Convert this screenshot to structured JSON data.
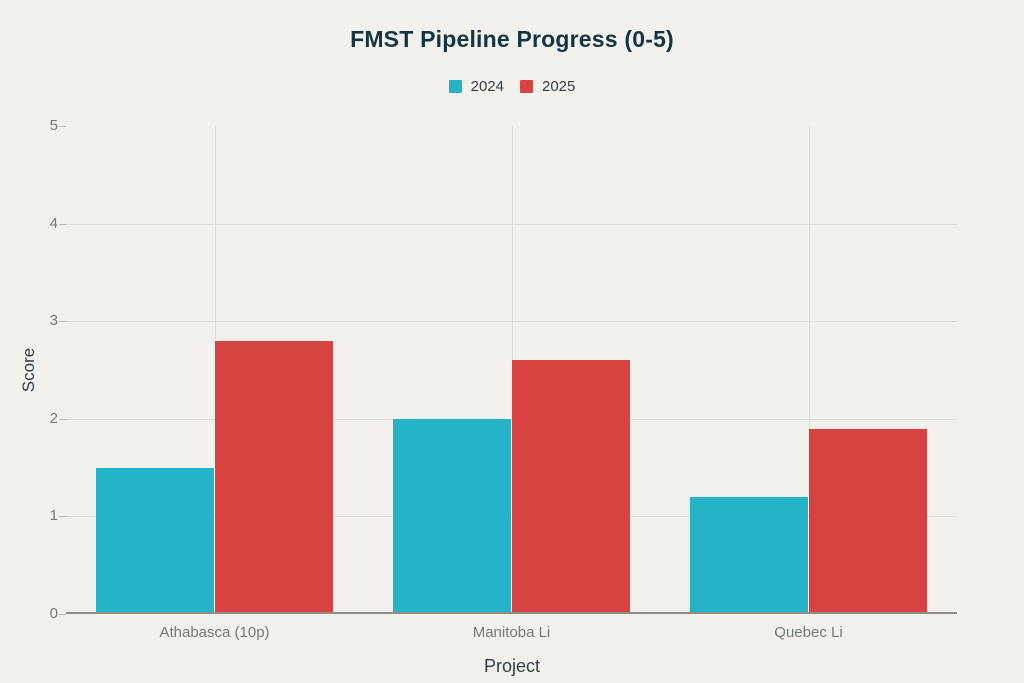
{
  "chart_data": {
    "type": "bar",
    "title": "FMST Pipeline Progress (0-5)",
    "xlabel": "Project",
    "ylabel": "Score",
    "categories": [
      "Athabasca (10p)",
      "Manitoba Li",
      "Quebec Li"
    ],
    "series": [
      {
        "name": "2024",
        "color": "#25b3c7",
        "values": [
          1.5,
          2.0,
          1.2
        ]
      },
      {
        "name": "2025",
        "color": "#d84341",
        "values": [
          2.8,
          2.6,
          1.9
        ]
      }
    ],
    "ylim": [
      0,
      5
    ],
    "yticks": [
      0,
      1,
      2,
      3,
      4,
      5
    ],
    "grid": {
      "horizontal_gridlines_at": [
        1,
        2,
        3,
        4
      ],
      "vertical_gridlines": "one at each category center",
      "top_gridline_at_5": false
    },
    "legend_position": "top-center",
    "bar_width_fraction_of_band": 0.4
  },
  "colors": {
    "background": "#f2f1eb",
    "title_text": "#143642",
    "axis_title_text": "#2f4045",
    "tick_label_text": "#747b78",
    "legend_text": "#343f42",
    "gridline": "#dfddd5",
    "tick_mark": "#bcbbb2",
    "baseline": "#8f8e85"
  }
}
